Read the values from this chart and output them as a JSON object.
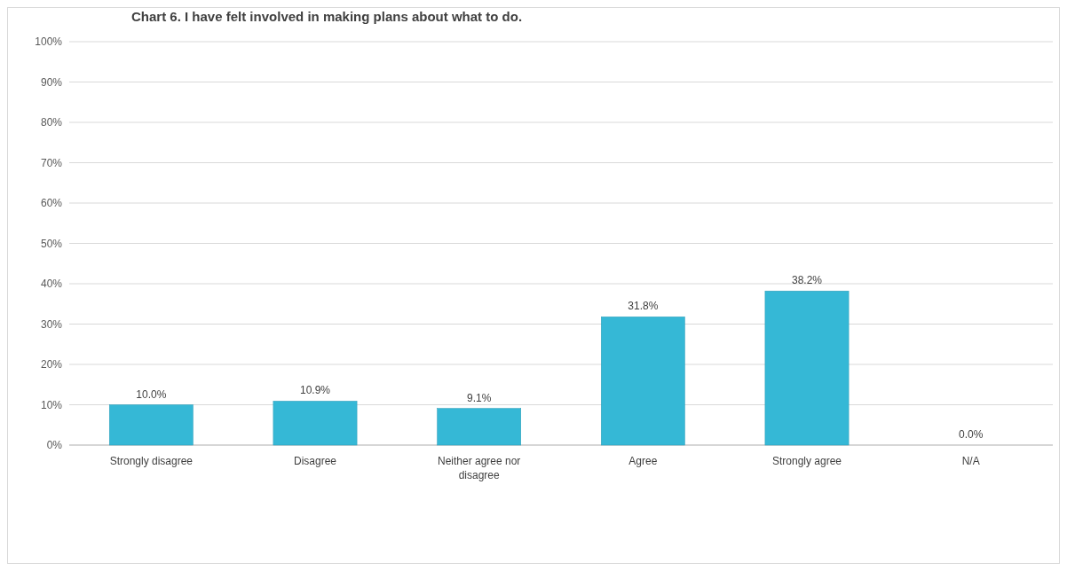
{
  "chart_data": {
    "type": "bar",
    "title": "Chart 6. I have felt involved in making plans about what to do.",
    "categories": [
      "Strongly disagree",
      "Disagree",
      "Neither agree nor disagree",
      "Agree",
      "Strongly agree",
      "N/A"
    ],
    "values": [
      10.0,
      10.9,
      9.1,
      31.8,
      38.2,
      0.0
    ],
    "value_labels": [
      "10.0%",
      "10.9%",
      "9.1%",
      "31.8%",
      "38.2%",
      "0.0%"
    ],
    "color": "#35b8d6",
    "ylim": [
      0,
      100
    ],
    "yticks": [
      {
        "value": 0,
        "label": "0%"
      },
      {
        "value": 10,
        "label": "10%"
      },
      {
        "value": 20,
        "label": "20%"
      },
      {
        "value": 30,
        "label": "30%"
      },
      {
        "value": 40,
        "label": "40%"
      },
      {
        "value": 50,
        "label": "50%"
      },
      {
        "value": 60,
        "label": "60%"
      },
      {
        "value": 70,
        "label": "70%"
      },
      {
        "value": 80,
        "label": "80%"
      },
      {
        "value": 90,
        "label": "90%"
      },
      {
        "value": 100,
        "label": "100%"
      }
    ],
    "grid": "y"
  }
}
